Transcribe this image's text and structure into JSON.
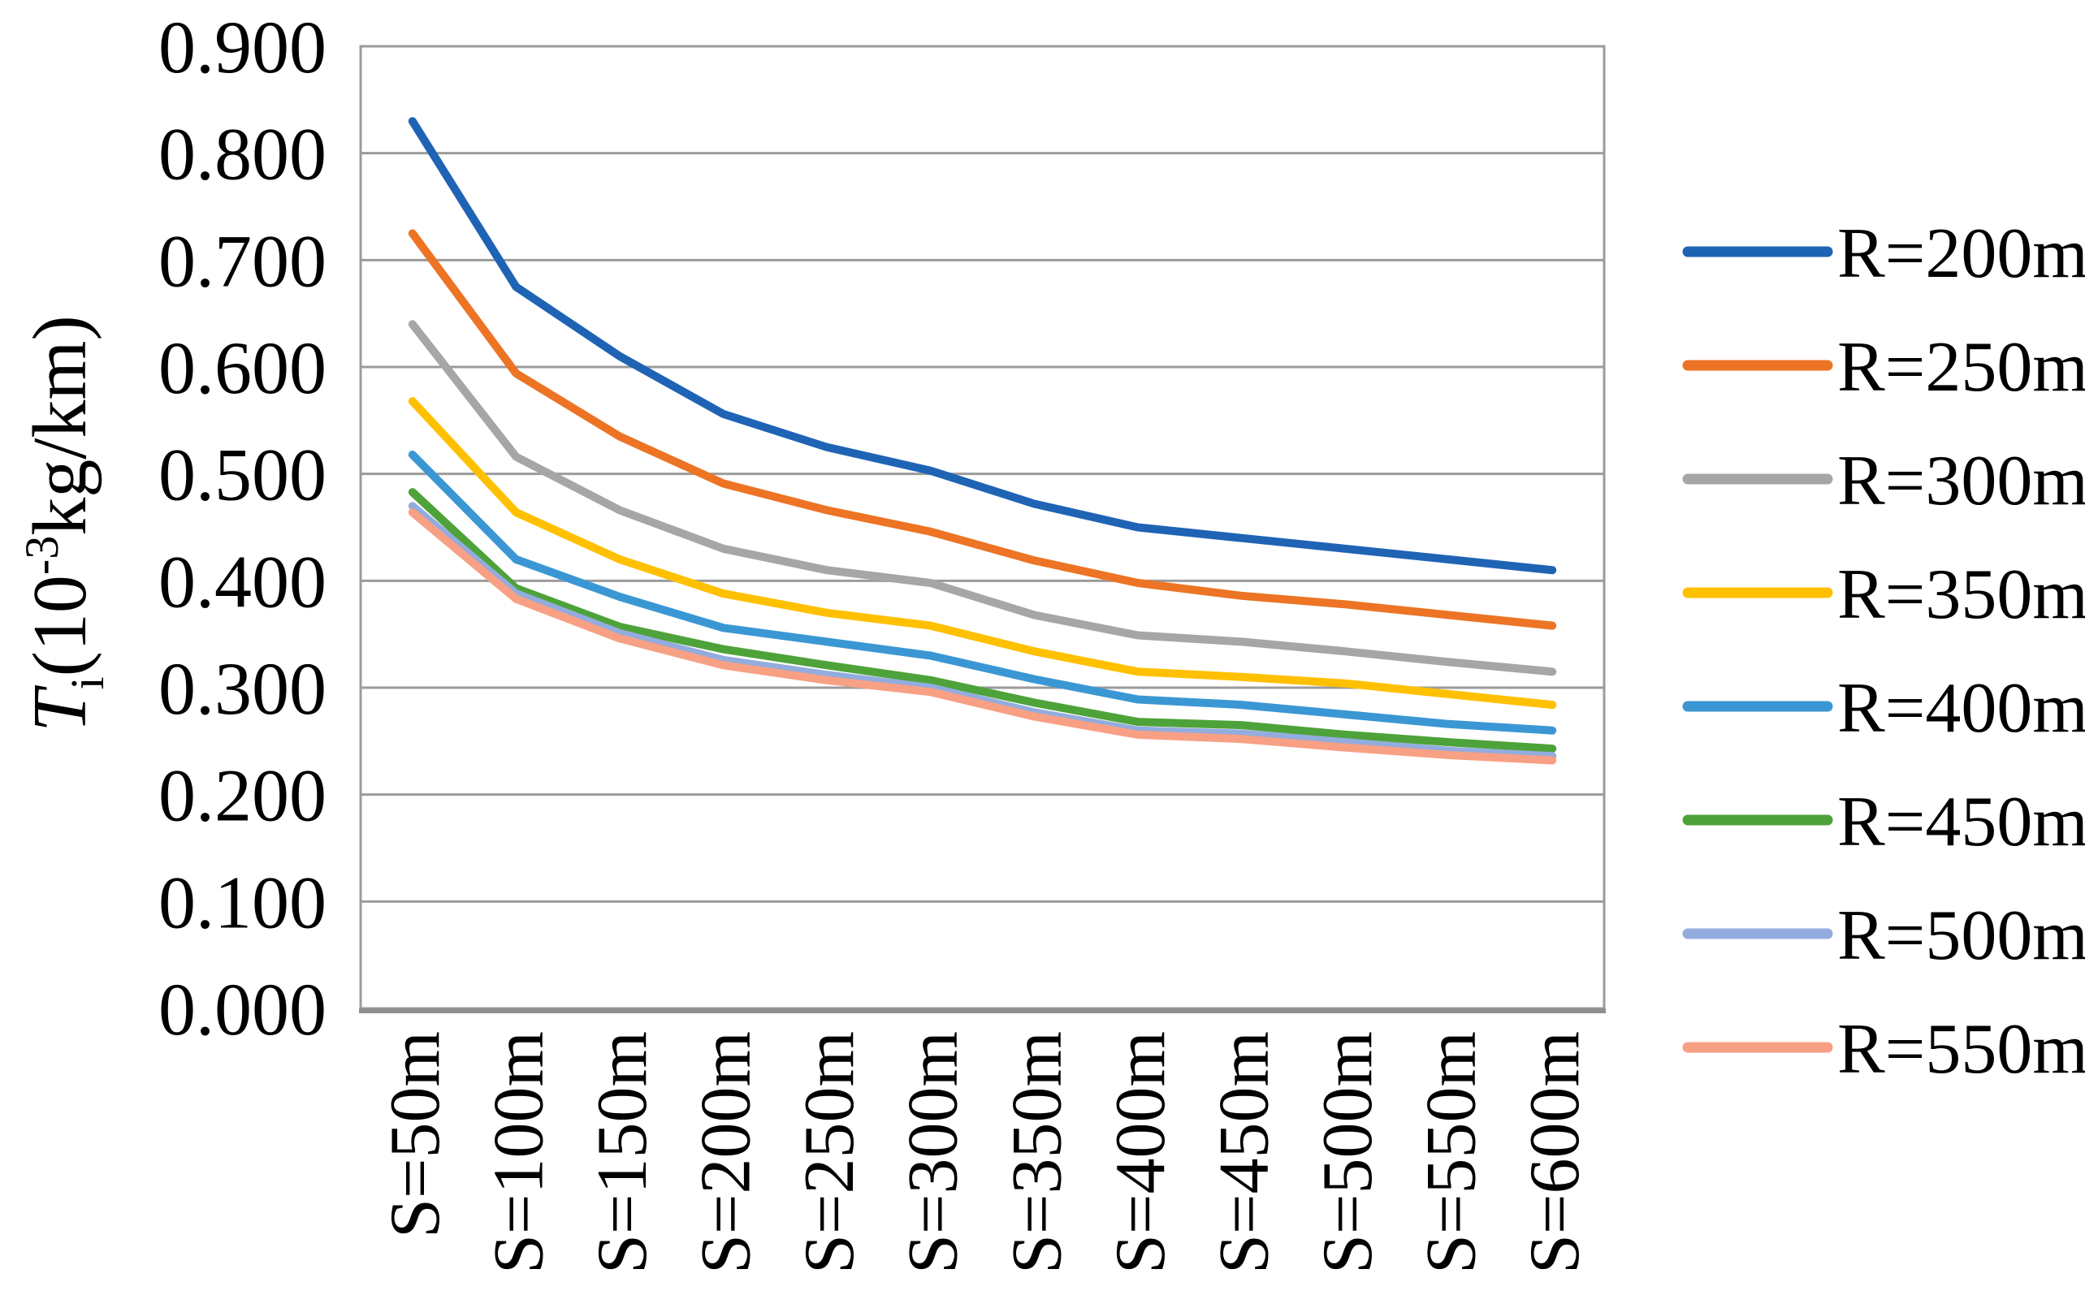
{
  "figure": {
    "background": "#ffffff",
    "gridline_color": "#9b9b9b",
    "axis_line_color": "#8f8f8f",
    "text_color": "#000000"
  },
  "chart_data": {
    "type": "line",
    "title": "",
    "xlabel": "",
    "ylabel": "Ti(10-3kg/km)",
    "ylabel_parts": [
      {
        "text": "T",
        "style": "italic"
      },
      {
        "text": "i",
        "style": "sub"
      },
      {
        "text": "(10",
        "style": "normal"
      },
      {
        "text": "-3",
        "style": "sup"
      },
      {
        "text": "kg/km)",
        "style": "normal"
      }
    ],
    "ylim": [
      0.0,
      0.9
    ],
    "y_tick_step": 0.1,
    "y_ticks": [
      "0.000",
      "0.100",
      "0.200",
      "0.300",
      "0.400",
      "0.500",
      "0.600",
      "0.700",
      "0.800",
      "0.900"
    ],
    "grid": "horizontal",
    "legend_position": "right",
    "x_label_rotation": -90,
    "categories": [
      "S=50m",
      "S=100m",
      "S=150m",
      "S=200m",
      "S=250m",
      "S=300m",
      "S=350m",
      "S=400m",
      "S=450m",
      "S=500m",
      "S=550m",
      "S=600m"
    ],
    "series": [
      {
        "name": "R=200m",
        "color": "#1f63b5",
        "values": [
          0.83,
          0.675,
          0.61,
          0.556,
          0.525,
          0.503,
          0.472,
          0.45,
          0.44,
          0.43,
          0.42,
          0.41
        ]
      },
      {
        "name": "R=250m",
        "color": "#ec7424",
        "values": [
          0.725,
          0.594,
          0.535,
          0.491,
          0.466,
          0.446,
          0.419,
          0.398,
          0.386,
          0.378,
          0.368,
          0.358
        ]
      },
      {
        "name": "R=300m",
        "color": "#a6a6a6",
        "values": [
          0.64,
          0.516,
          0.466,
          0.43,
          0.41,
          0.398,
          0.368,
          0.349,
          0.343,
          0.334,
          0.324,
          0.315
        ]
      },
      {
        "name": "R=350m",
        "color": "#ffc000",
        "values": [
          0.568,
          0.464,
          0.42,
          0.388,
          0.37,
          0.358,
          0.334,
          0.315,
          0.31,
          0.304,
          0.294,
          0.284
        ]
      },
      {
        "name": "R=400m",
        "color": "#3b97d3",
        "values": [
          0.518,
          0.42,
          0.385,
          0.356,
          0.343,
          0.33,
          0.308,
          0.289,
          0.284,
          0.275,
          0.266,
          0.26
        ]
      },
      {
        "name": "R=450m",
        "color": "#4ea23a",
        "values": [
          0.483,
          0.393,
          0.357,
          0.336,
          0.321,
          0.307,
          0.286,
          0.268,
          0.265,
          0.256,
          0.249,
          0.243
        ]
      },
      {
        "name": "R=500m",
        "color": "#93acde",
        "values": [
          0.47,
          0.388,
          0.351,
          0.326,
          0.312,
          0.3,
          0.277,
          0.26,
          0.257,
          0.249,
          0.241,
          0.236
        ]
      },
      {
        "name": "R=550m",
        "color": "#f8a084",
        "values": [
          0.464,
          0.383,
          0.346,
          0.321,
          0.307,
          0.296,
          0.273,
          0.256,
          0.252,
          0.244,
          0.237,
          0.232
        ]
      }
    ]
  }
}
